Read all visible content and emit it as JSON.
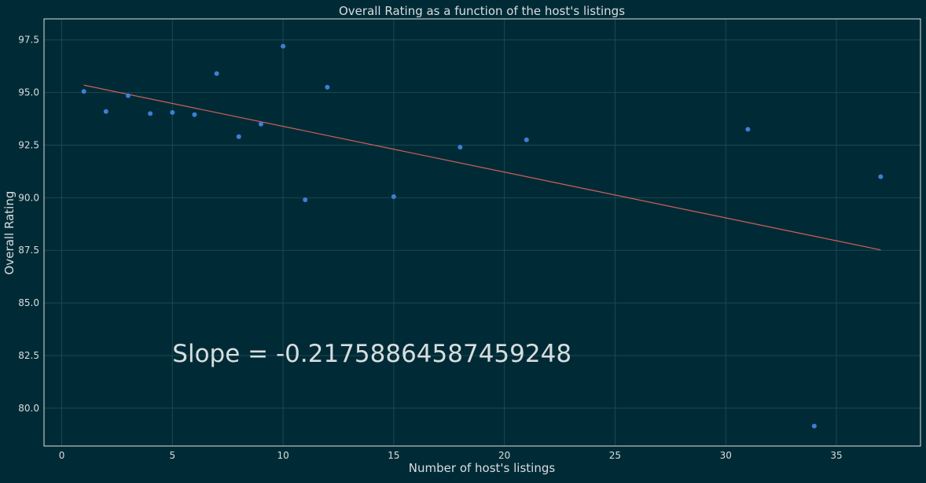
{
  "chart_data": {
    "type": "scatter",
    "title": "Overall Rating as a function of the host's listings",
    "xlabel": "Number of host's listings",
    "ylabel": "Overall Rating",
    "xlim": [
      -0.8,
      38.8
    ],
    "ylim": [
      78.2,
      98.5
    ],
    "xticks": [
      0,
      5,
      10,
      15,
      20,
      25,
      30,
      35
    ],
    "yticks": [
      80.0,
      82.5,
      85.0,
      87.5,
      90.0,
      92.5,
      95.0,
      97.5
    ],
    "xtick_labels": [
      "0",
      "5",
      "10",
      "15",
      "20",
      "25",
      "30",
      "35"
    ],
    "ytick_labels": [
      "80.0",
      "82.5",
      "85.0",
      "87.5",
      "90.0",
      "92.5",
      "95.0",
      "97.5"
    ],
    "grid": true,
    "points": [
      {
        "x": 1,
        "y": 95.05
      },
      {
        "x": 2,
        "y": 94.1
      },
      {
        "x": 3,
        "y": 94.85
      },
      {
        "x": 4,
        "y": 94.0
      },
      {
        "x": 5,
        "y": 94.05
      },
      {
        "x": 6,
        "y": 93.95
      },
      {
        "x": 7,
        "y": 95.9
      },
      {
        "x": 8,
        "y": 92.9
      },
      {
        "x": 9,
        "y": 93.5
      },
      {
        "x": 10,
        "y": 97.2
      },
      {
        "x": 11,
        "y": 89.9
      },
      {
        "x": 12,
        "y": 95.25
      },
      {
        "x": 15,
        "y": 90.05
      },
      {
        "x": 18,
        "y": 92.4
      },
      {
        "x": 21,
        "y": 92.75
      },
      {
        "x": 31,
        "y": 93.25
      },
      {
        "x": 34,
        "y": 79.15
      },
      {
        "x": 37,
        "y": 91.0
      }
    ],
    "regression_line": {
      "x": [
        1,
        37
      ],
      "y": [
        95.35,
        87.52
      ]
    },
    "annotation": {
      "text": "Slope = -0.21758864587459248",
      "x": 5,
      "y": 82.2
    }
  },
  "colors": {
    "background": "#002b36",
    "plot_border": "#e0e0e0",
    "grid": "#1b4852",
    "text": "#d8dee0",
    "points": "#3d7fd6",
    "line": "#d0605c"
  }
}
